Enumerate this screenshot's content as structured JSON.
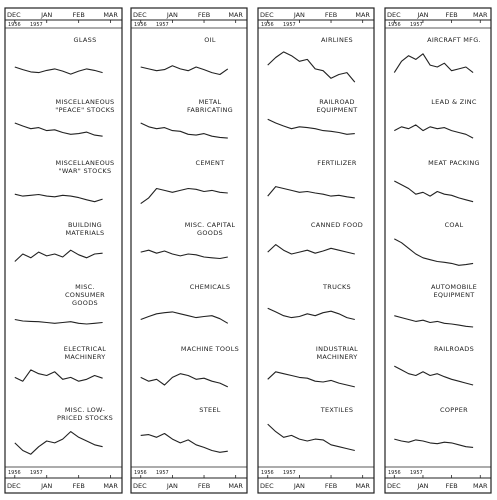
{
  "chart_data": [
    {
      "type": "line",
      "color": "#222222",
      "xlim": [
        -0.6,
        12.8
      ],
      "xticks": [
        {
          "value": 0,
          "label": "DEC"
        },
        {
          "value": 4,
          "label": "JAN"
        },
        {
          "value": 8,
          "label": "FEB"
        },
        {
          "value": 12,
          "label": "MAR"
        }
      ],
      "year_labels": [
        "1956",
        "1957"
      ],
      "ylim": [
        0,
        100
      ],
      "x": [
        0,
        1,
        2,
        3,
        4,
        5,
        6,
        7,
        8,
        9,
        10,
        11
      ],
      "series": [
        {
          "name": "GLASS",
          "values": [
            55,
            48,
            42,
            40,
            46,
            50,
            44,
            36,
            44,
            50,
            46,
            40
          ]
        },
        {
          "name": "MISCELLANEOUS \"PEACE\" STOCKS",
          "values": [
            70,
            62,
            55,
            58,
            50,
            52,
            45,
            40,
            42,
            46,
            38,
            35
          ]
        },
        {
          "name": "MISCELLANEOUS \"WAR\" STOCKS",
          "values": [
            45,
            40,
            42,
            44,
            40,
            38,
            42,
            40,
            36,
            30,
            25,
            32
          ]
        },
        {
          "name": "BUILDING MATERIALS",
          "values": [
            30,
            50,
            40,
            55,
            45,
            50,
            42,
            60,
            48,
            40,
            50,
            52
          ]
        },
        {
          "name": "MISC. CONSUMER GOODS",
          "values": [
            40,
            36,
            35,
            34,
            32,
            30,
            32,
            34,
            30,
            28,
            30,
            32
          ]
        },
        {
          "name": "ELECTRICAL MACHINERY",
          "values": [
            50,
            40,
            70,
            60,
            55,
            65,
            45,
            50,
            40,
            45,
            55,
            48
          ]
        },
        {
          "name": "MISC. LOW-PRICED STOCKS",
          "values": [
            40,
            20,
            10,
            30,
            45,
            40,
            50,
            70,
            55,
            45,
            35,
            30
          ]
        }
      ]
    },
    {
      "type": "line",
      "color": "#222222",
      "xlim": [
        -0.6,
        12.8
      ],
      "xticks": [
        {
          "value": 0,
          "label": "DEC"
        },
        {
          "value": 4,
          "label": "JAN"
        },
        {
          "value": 8,
          "label": "FEB"
        },
        {
          "value": 12,
          "label": "MAR"
        }
      ],
      "year_labels": [
        "1956",
        "1957"
      ],
      "ylim": [
        0,
        100
      ],
      "x": [
        0,
        1,
        2,
        3,
        4,
        5,
        6,
        7,
        8,
        9,
        10,
        11
      ],
      "series": [
        {
          "name": "OIL",
          "values": [
            55,
            50,
            45,
            48,
            58,
            50,
            45,
            55,
            48,
            40,
            35,
            50
          ]
        },
        {
          "name": "METAL FABRICATING",
          "values": [
            70,
            60,
            55,
            58,
            50,
            48,
            40,
            38,
            42,
            35,
            32,
            30
          ]
        },
        {
          "name": "CEMENT",
          "values": [
            20,
            35,
            60,
            55,
            50,
            55,
            60,
            58,
            52,
            55,
            50,
            48
          ]
        },
        {
          "name": "MISC. CAPITAL GOODS",
          "values": [
            55,
            60,
            52,
            58,
            50,
            45,
            50,
            48,
            42,
            40,
            38,
            42
          ]
        },
        {
          "name": "CHEMICALS",
          "values": [
            40,
            48,
            55,
            58,
            60,
            55,
            50,
            45,
            48,
            50,
            42,
            30
          ]
        },
        {
          "name": "MACHINE TOOLS",
          "values": [
            50,
            40,
            45,
            30,
            50,
            60,
            55,
            45,
            48,
            40,
            35,
            25
          ]
        },
        {
          "name": "STEEL",
          "values": [
            60,
            62,
            55,
            65,
            50,
            40,
            48,
            35,
            28,
            20,
            15,
            18
          ]
        }
      ]
    },
    {
      "type": "line",
      "color": "#222222",
      "xlim": [
        -0.6,
        12.8
      ],
      "xticks": [
        {
          "value": 0,
          "label": "DEC"
        },
        {
          "value": 4,
          "label": "JAN"
        },
        {
          "value": 8,
          "label": "FEB"
        },
        {
          "value": 12,
          "label": "MAR"
        }
      ],
      "year_labels": [
        "1956",
        "1957"
      ],
      "ylim": [
        0,
        100
      ],
      "x": [
        0,
        1,
        2,
        3,
        4,
        5,
        6,
        7,
        8,
        9,
        10,
        11
      ],
      "series": [
        {
          "name": "AIRLINES",
          "values": [
            60,
            80,
            95,
            85,
            70,
            75,
            50,
            45,
            25,
            35,
            40,
            15
          ]
        },
        {
          "name": "RAILROAD EQUIPMENT",
          "values": [
            80,
            70,
            62,
            55,
            60,
            58,
            55,
            50,
            48,
            45,
            40,
            42
          ]
        },
        {
          "name": "FERTILIZER",
          "values": [
            40,
            65,
            60,
            55,
            50,
            52,
            48,
            45,
            40,
            42,
            38,
            35
          ]
        },
        {
          "name": "CANNED FOOD",
          "values": [
            55,
            75,
            60,
            50,
            55,
            60,
            52,
            58,
            65,
            60,
            55,
            50
          ]
        },
        {
          "name": "TRUCKS",
          "values": [
            70,
            60,
            50,
            45,
            48,
            55,
            50,
            58,
            62,
            55,
            45,
            40
          ]
        },
        {
          "name": "INDUSTRIAL MACHINERY",
          "values": [
            45,
            65,
            60,
            55,
            50,
            48,
            40,
            38,
            42,
            35,
            30,
            25
          ]
        },
        {
          "name": "TEXTILES",
          "values": [
            90,
            70,
            55,
            60,
            50,
            45,
            50,
            48,
            35,
            30,
            25,
            20
          ]
        }
      ]
    },
    {
      "type": "line",
      "color": "#222222",
      "xlim": [
        -0.6,
        12.8
      ],
      "xticks": [
        {
          "value": 0,
          "label": "DEC"
        },
        {
          "value": 4,
          "label": "JAN"
        },
        {
          "value": 8,
          "label": "FEB"
        },
        {
          "value": 12,
          "label": "MAR"
        }
      ],
      "year_labels": [
        "1956",
        "1957"
      ],
      "ylim": [
        0,
        100
      ],
      "x": [
        0,
        1,
        2,
        3,
        4,
        5,
        6,
        7,
        8,
        9,
        10,
        11
      ],
      "series": [
        {
          "name": "AIRCRAFT MFG.",
          "values": [
            40,
            70,
            85,
            75,
            90,
            60,
            55,
            65,
            45,
            50,
            55,
            40
          ]
        },
        {
          "name": "LEAD & ZINC",
          "values": [
            50,
            60,
            55,
            65,
            50,
            60,
            55,
            58,
            50,
            45,
            40,
            30
          ]
        },
        {
          "name": "MEAT PACKING",
          "values": [
            80,
            70,
            60,
            45,
            50,
            40,
            52,
            45,
            42,
            35,
            30,
            25
          ]
        },
        {
          "name": "COAL",
          "values": [
            90,
            80,
            65,
            50,
            40,
            35,
            30,
            28,
            25,
            20,
            22,
            25
          ]
        },
        {
          "name": "AUTOMOBILE EQUIPMENT",
          "values": [
            50,
            45,
            40,
            35,
            38,
            32,
            35,
            30,
            28,
            25,
            22,
            20
          ]
        },
        {
          "name": "RAILROADS",
          "values": [
            80,
            70,
            60,
            55,
            65,
            55,
            60,
            52,
            45,
            40,
            35,
            30
          ]
        },
        {
          "name": "COPPER",
          "values": [
            50,
            45,
            42,
            48,
            45,
            40,
            38,
            42,
            40,
            35,
            30,
            28
          ]
        }
      ]
    }
  ]
}
